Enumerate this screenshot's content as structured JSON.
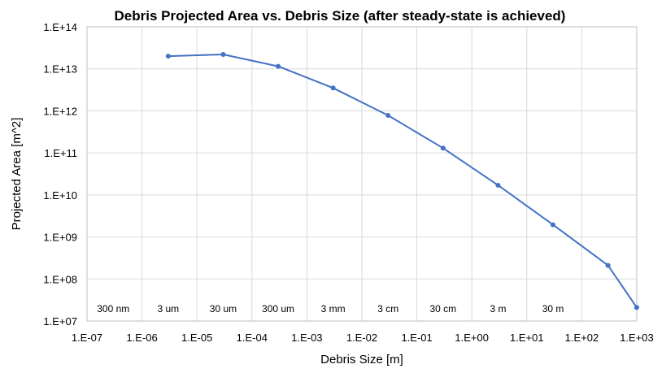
{
  "chart_data": {
    "type": "line",
    "title": "Debris Projected Area vs. Debris Size (after steady-state is achieved)",
    "xlabel": "Debris Size [m]",
    "ylabel": "Projected Area [m^2]",
    "x_scale": "log",
    "y_scale": "log",
    "xlim": [
      1e-07,
      1000
    ],
    "ylim": [
      10000000.0,
      100000000000000.0
    ],
    "grid": true,
    "legend": "none",
    "x_ticks": [
      1e-07,
      1e-06,
      1e-05,
      0.0001,
      0.001,
      0.01,
      0.1,
      1,
      10,
      100,
      1000
    ],
    "x_tick_labels": [
      "1.E-07",
      "1.E-06",
      "1.E-05",
      "1.E-04",
      "1.E-03",
      "1.E-02",
      "1.E-01",
      "1.E+00",
      "1.E+01",
      "1.E+02",
      "1.E+03"
    ],
    "y_ticks": [
      10000000.0,
      100000000.0,
      1000000000.0,
      10000000000.0,
      100000000000.0,
      1000000000000.0,
      10000000000000.0,
      100000000000000.0
    ],
    "y_tick_labels": [
      "1.E+07",
      "1.E+08",
      "1.E+09",
      "1.E+10",
      "1.E+11",
      "1.E+12",
      "1.E+13",
      "1.E+14"
    ],
    "series": [
      {
        "color": "#4472C4",
        "x": [
          3e-06,
          3e-05,
          0.0003,
          0.003,
          0.03,
          0.3,
          3,
          30,
          300,
          1000
        ],
        "y": [
          20000000000000.0,
          22000000000000.0,
          11500000000000.0,
          3500000000000.0,
          780000000000.0,
          130000000000.0,
          17000000000.0,
          1950000000.0,
          210000000.0,
          21000000.0
        ]
      }
    ],
    "annotations": [
      {
        "text": "300 nm",
        "x": 3e-07
      },
      {
        "text": "3 um",
        "x": 3e-06
      },
      {
        "text": "30 um",
        "x": 3e-05
      },
      {
        "text": "300 um",
        "x": 0.0003
      },
      {
        "text": "3 mm",
        "x": 0.003
      },
      {
        "text": "3 cm",
        "x": 0.03
      },
      {
        "text": "30 cm",
        "x": 0.3
      },
      {
        "text": "3 m",
        "x": 3
      },
      {
        "text": "30 m",
        "x": 30
      }
    ]
  }
}
